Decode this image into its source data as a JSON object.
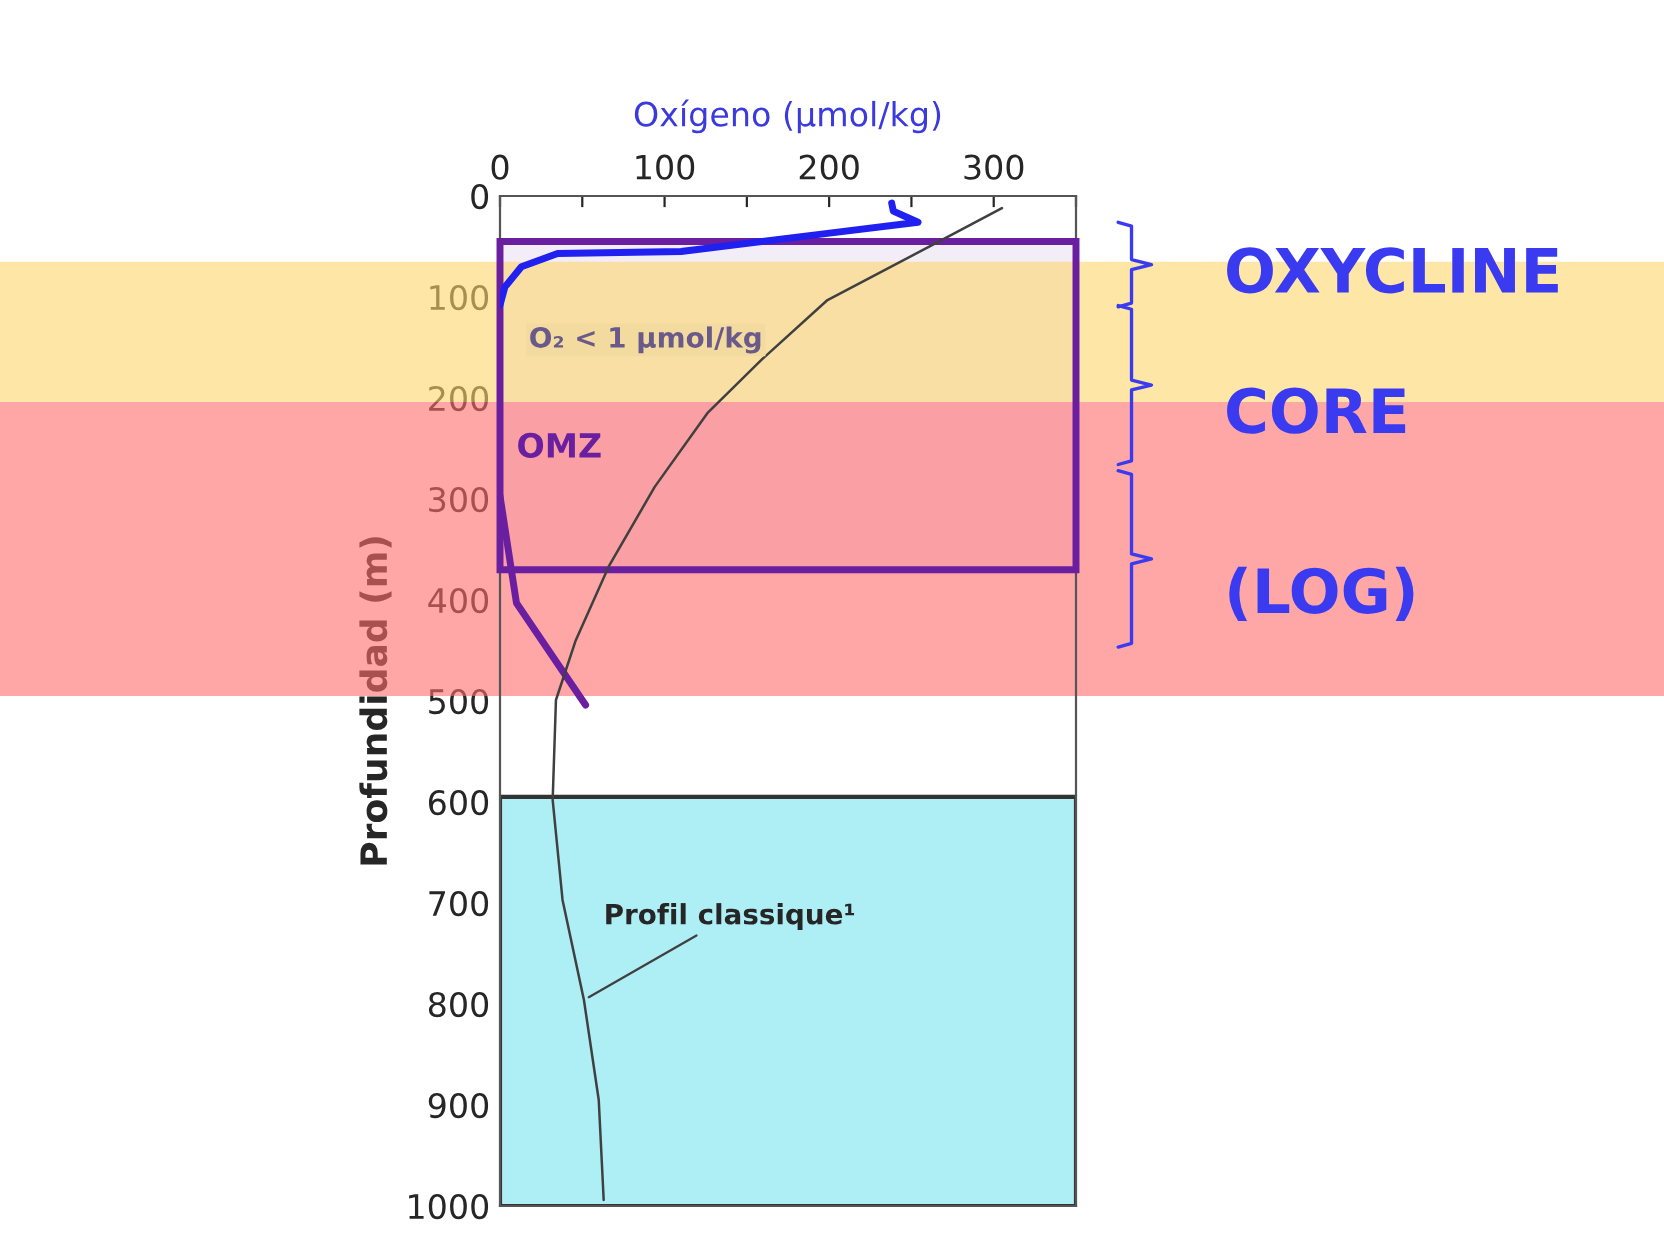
{
  "chart_data": {
    "type": "line",
    "xlabel": "Oxígeno (µmol/kg)",
    "ylabel": "Profundidad (m)",
    "xlim": [
      0,
      350
    ],
    "xticks": [
      0,
      {
        "value": 50,
        "label": null
      },
      100,
      {
        "value": 150,
        "label": null
      },
      200,
      {
        "value": 250,
        "label": null
      },
      300,
      {
        "value": 350,
        "label": null
      }
    ],
    "ylim": [
      1000,
      0
    ],
    "yticks": [
      0,
      100,
      200,
      300,
      400,
      500,
      600,
      700,
      800,
      900,
      1000
    ],
    "series": [
      {
        "color": "#2020f0",
        "x": [
          238,
          239,
          254,
          199,
          110,
          35,
          13,
          3,
          0
        ],
        "values": [
          7,
          15,
          26,
          37,
          55,
          57,
          70,
          90,
          108
        ]
      },
      {
        "color": "#6a1fa0",
        "x": [
          0,
          10,
          52
        ],
        "values": [
          297,
          403,
          504
        ]
      },
      {
        "color": "#404040",
        "x": [
          305,
          268,
          199,
          159,
          126,
          94,
          66,
          46,
          34,
          32,
          38,
          51,
          60,
          63
        ],
        "values": [
          12,
          44,
          103,
          162,
          215,
          288,
          367,
          440,
          499,
          598,
          697,
          796,
          895,
          994
        ]
      }
    ],
    "bands": [
      {
        "axis": "y",
        "from": 45,
        "to": 370,
        "label": "OMZ",
        "color": "#6a1fa0"
      },
      {
        "axis": "y",
        "from": 595,
        "to": 1000,
        "color": "#aeeef5"
      },
      {
        "axis": "y",
        "from": 65,
        "to": 204,
        "color": "#fdd56a"
      },
      {
        "axis": "y",
        "from": 204,
        "to": 495,
        "color": "#ff6b6b"
      }
    ],
    "annotations": [
      "O₂ < 1 µmol/kg",
      {
        "text": "Profil classique¹",
        "x": 51,
        "y": 796
      },
      "OXYCLINE",
      "CORE",
      "(LOG)"
    ],
    "grid": false,
    "legend": false
  }
}
